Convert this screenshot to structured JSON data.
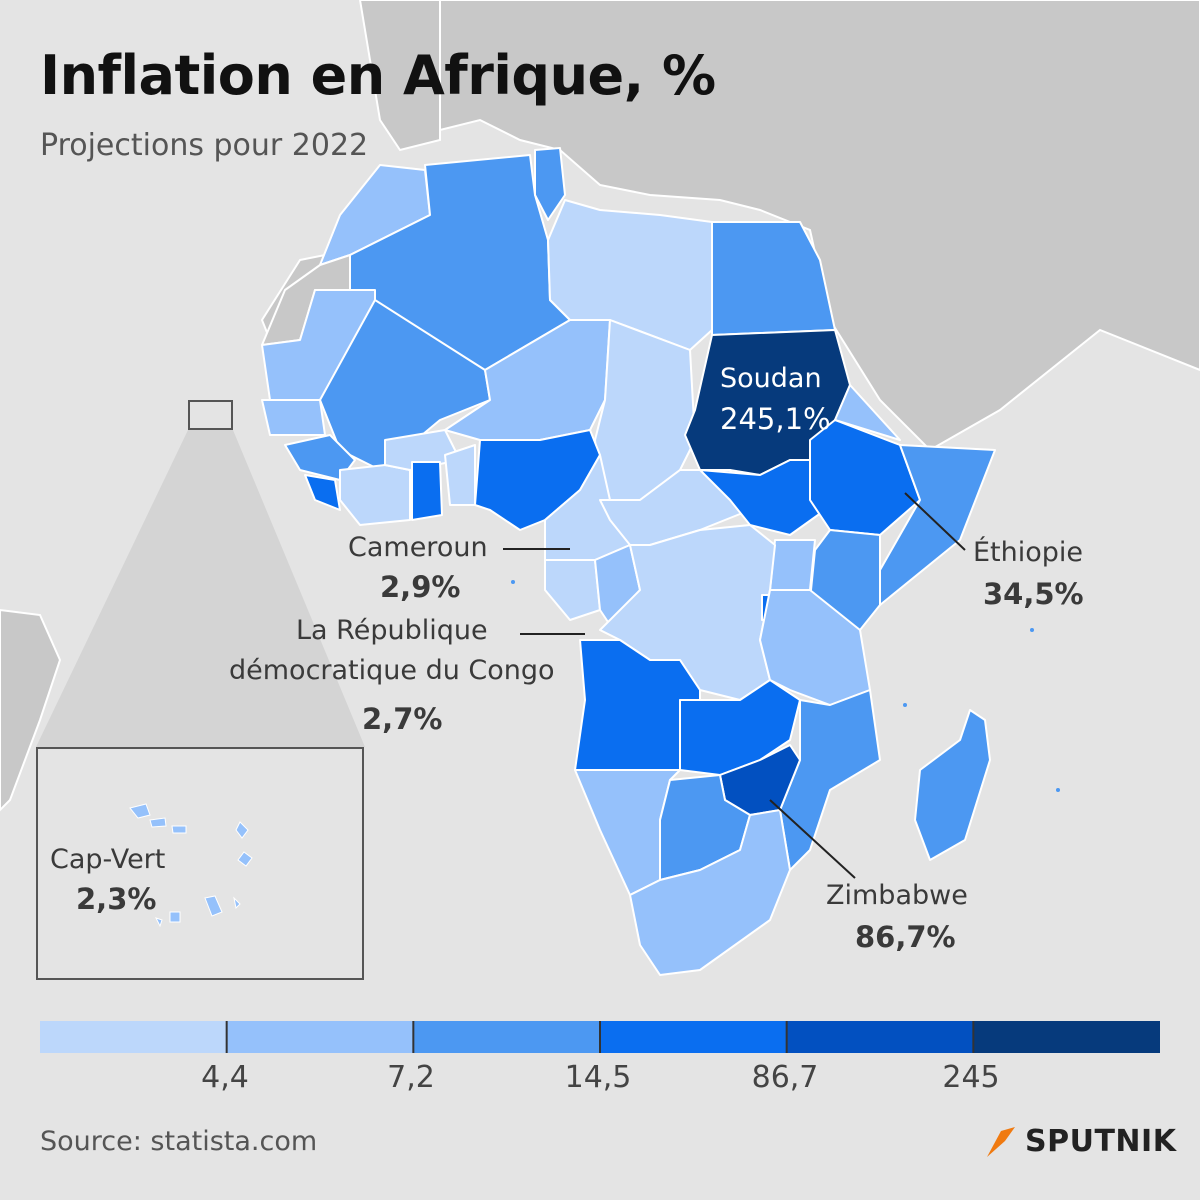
{
  "title": "Inflation en Afrique, %",
  "subtitle": "Projections pour 2022",
  "source": "Source: statista.com",
  "brand": "SPUTNIK",
  "colors": {
    "background": "#e4e4e4",
    "land_other": "#c8c8c8",
    "border": "#ffffff",
    "bin_1": "#bcd7fb",
    "bin_2": "#95c1fb",
    "bin_3": "#4c98f2",
    "bin_4": "#0a6ef0",
    "bin_5": "#0250c0",
    "bin_6": "#063a7c",
    "brand_accent": "#f07a10"
  },
  "legend": {
    "thresholds": [
      "4,4",
      "7,2",
      "14,5",
      "86,7",
      "245"
    ]
  },
  "callouts": [
    {
      "name": "Soudan",
      "value": "245,1%"
    },
    {
      "name": "Éthiopie",
      "value": "34,5%"
    },
    {
      "name": "Cameroun",
      "value": "2,9%"
    },
    {
      "name": "La République",
      "name2": "démocratique du Congo",
      "value": "2,7%"
    },
    {
      "name": "Zimbabwe",
      "value": "86,7%"
    },
    {
      "name": "Cap-Vert",
      "value": "2,3%"
    }
  ]
}
